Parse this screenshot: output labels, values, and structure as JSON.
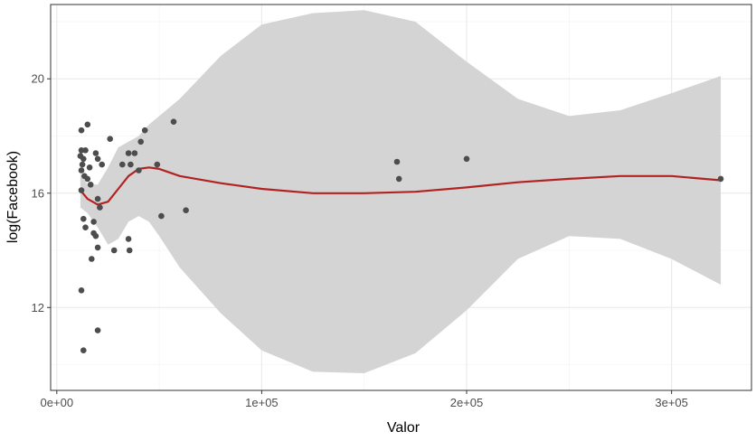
{
  "chart_data": {
    "type": "scatter",
    "title": "",
    "xlabel": "Valor",
    "ylabel": "log(Facebook)",
    "xlim": [
      -3000,
      339000
    ],
    "ylim": [
      9.1,
      22.6
    ],
    "x_ticks": [
      {
        "value": 0,
        "label": "0e+00"
      },
      {
        "value": 100000,
        "label": "1e+05"
      },
      {
        "value": 200000,
        "label": "2e+05"
      },
      {
        "value": 300000,
        "label": "3e+05"
      }
    ],
    "y_ticks": [
      {
        "value": 12,
        "label": "12"
      },
      {
        "value": 16,
        "label": "16"
      },
      {
        "value": 20,
        "label": "20"
      }
    ],
    "grid": true,
    "legend": "none",
    "colors": {
      "points": "#4d4d4d",
      "smooth_line": "#b22222",
      "confidence_band": "#d4d4d4",
      "grid_major": "#ebebeb",
      "grid_minor": "#f4f4f4",
      "panel_border": "#333333"
    },
    "points": [
      {
        "x": 12000,
        "y": 18.2
      },
      {
        "x": 15000,
        "y": 18.4
      },
      {
        "x": 26000,
        "y": 17.9
      },
      {
        "x": 12000,
        "y": 17.5
      },
      {
        "x": 14000,
        "y": 17.5
      },
      {
        "x": 11500,
        "y": 17.3
      },
      {
        "x": 13000,
        "y": 17.2
      },
      {
        "x": 12500,
        "y": 17.0
      },
      {
        "x": 19000,
        "y": 17.4
      },
      {
        "x": 20000,
        "y": 17.2
      },
      {
        "x": 22000,
        "y": 17.0
      },
      {
        "x": 16000,
        "y": 16.9
      },
      {
        "x": 13500,
        "y": 16.6
      },
      {
        "x": 12000,
        "y": 16.8
      },
      {
        "x": 15000,
        "y": 16.5
      },
      {
        "x": 32000,
        "y": 17.0
      },
      {
        "x": 35000,
        "y": 17.4
      },
      {
        "x": 38000,
        "y": 17.4
      },
      {
        "x": 36000,
        "y": 17.0
      },
      {
        "x": 43000,
        "y": 18.2
      },
      {
        "x": 41000,
        "y": 17.8
      },
      {
        "x": 57000,
        "y": 18.5
      },
      {
        "x": 40000,
        "y": 16.8
      },
      {
        "x": 49000,
        "y": 17.0
      },
      {
        "x": 12000,
        "y": 16.1
      },
      {
        "x": 16500,
        "y": 16.3
      },
      {
        "x": 20000,
        "y": 15.8
      },
      {
        "x": 21000,
        "y": 15.5
      },
      {
        "x": 13000,
        "y": 15.1
      },
      {
        "x": 18000,
        "y": 15.0
      },
      {
        "x": 14000,
        "y": 14.8
      },
      {
        "x": 18000,
        "y": 14.6
      },
      {
        "x": 19000,
        "y": 14.5
      },
      {
        "x": 20000,
        "y": 14.1
      },
      {
        "x": 17000,
        "y": 13.7
      },
      {
        "x": 28000,
        "y": 14.0
      },
      {
        "x": 35000,
        "y": 14.4
      },
      {
        "x": 35500,
        "y": 14.0
      },
      {
        "x": 51000,
        "y": 15.2
      },
      {
        "x": 63000,
        "y": 15.4
      },
      {
        "x": 12000,
        "y": 12.6
      },
      {
        "x": 20000,
        "y": 11.2
      },
      {
        "x": 13000,
        "y": 10.5
      },
      {
        "x": 166000,
        "y": 17.1
      },
      {
        "x": 167000,
        "y": 16.5
      },
      {
        "x": 200000,
        "y": 17.2
      },
      {
        "x": 324000,
        "y": 16.5
      }
    ],
    "smooth": {
      "x": [
        11500,
        15000,
        20000,
        25000,
        30000,
        35000,
        40000,
        45000,
        50000,
        60000,
        80000,
        100000,
        125000,
        150000,
        175000,
        200000,
        225000,
        250000,
        275000,
        300000,
        324000
      ],
      "y": [
        16.1,
        15.8,
        15.6,
        15.7,
        16.15,
        16.6,
        16.85,
        16.9,
        16.85,
        16.6,
        16.35,
        16.15,
        16.0,
        16.0,
        16.05,
        16.2,
        16.38,
        16.5,
        16.6,
        16.6,
        16.45
      ],
      "lower": [
        15.5,
        15.3,
        14.8,
        14.2,
        14.4,
        15.0,
        15.2,
        15.0,
        14.5,
        13.4,
        11.8,
        10.5,
        9.75,
        9.7,
        10.4,
        11.9,
        13.7,
        14.5,
        14.4,
        13.7,
        12.8
      ],
      "upper": [
        16.7,
        16.3,
        16.3,
        16.9,
        17.6,
        17.8,
        18.0,
        18.4,
        18.7,
        19.3,
        20.8,
        21.9,
        22.3,
        22.4,
        22.0,
        20.6,
        19.3,
        18.7,
        18.9,
        19.5,
        20.1
      ]
    }
  }
}
